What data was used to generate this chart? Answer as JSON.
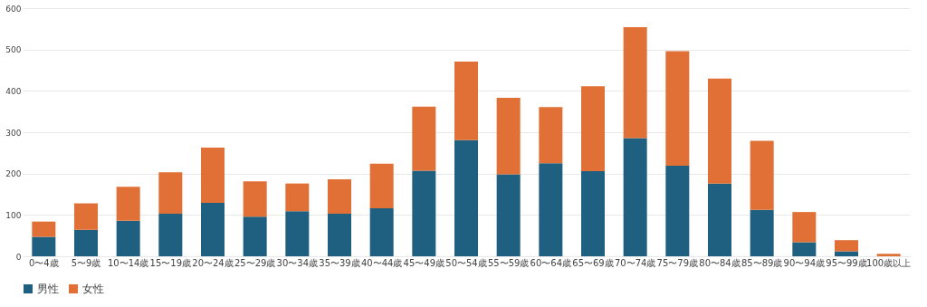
{
  "chart_data": {
    "type": "bar",
    "stacked": true,
    "categories": [
      "0〜4歳",
      "5〜9歳",
      "10〜14歳",
      "15〜19歳",
      "20〜24歳",
      "25〜29歳",
      "30〜34歳",
      "35〜39歳",
      "40〜44歳",
      "45〜49歳",
      "50〜54歳",
      "55〜59歳",
      "60〜64歳",
      "65〜69歳",
      "70〜74歳",
      "75〜79歳",
      "80〜84歳",
      "85〜89歳",
      "90〜94歳",
      "95〜99歳",
      "100歳以上"
    ],
    "series": [
      {
        "name": "男性",
        "color": "#1f5f7f",
        "values": [
          47,
          64,
          86,
          103,
          129,
          96,
          109,
          103,
          116,
          207,
          281,
          198,
          225,
          206,
          286,
          219,
          176,
          112,
          34,
          12,
          0
        ]
      },
      {
        "name": "女性",
        "color": "#e07035",
        "values": [
          37,
          64,
          82,
          100,
          134,
          85,
          67,
          83,
          108,
          155,
          190,
          185,
          136,
          205,
          268,
          277,
          254,
          167,
          73,
          27,
          6
        ]
      }
    ],
    "ylim": [
      0,
      600
    ],
    "yticks": [
      0,
      100,
      200,
      300,
      400,
      500,
      600
    ],
    "grid": "y",
    "legend": "bottom"
  }
}
